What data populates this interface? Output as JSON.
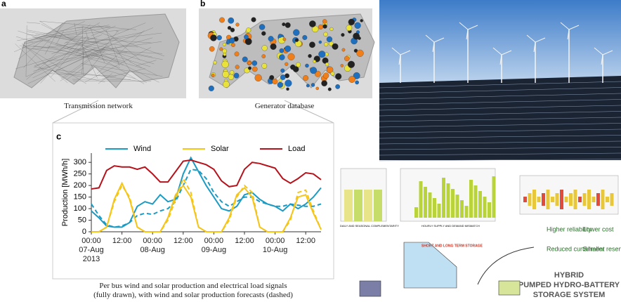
{
  "panels": {
    "a": {
      "letter": "a",
      "caption": "Transmission network"
    },
    "b": {
      "letter": "b",
      "caption": "Generator database"
    },
    "c": {
      "letter": "c",
      "caption_line1": "Per bus wind and solar production and electrical load signals",
      "caption_line2": "(fully drawn), with wind and solar production forecasts (dashed)"
    }
  },
  "chart_data": {
    "type": "line",
    "y_label": "Production [MWh/h]",
    "x": [
      0,
      3,
      6,
      9,
      12,
      15,
      18,
      21,
      24,
      27,
      30,
      33,
      36,
      39,
      42,
      45,
      48,
      51,
      54,
      57,
      60,
      63,
      66,
      69,
      72,
      75,
      78,
      81,
      84,
      87,
      90
    ],
    "xlim": [
      0,
      90
    ],
    "xticks": [
      {
        "value": 0,
        "label": "00:00\n07-Aug\n2013"
      },
      {
        "value": 12,
        "label": "12:00"
      },
      {
        "value": 24,
        "label": "00:00\n08-Aug"
      },
      {
        "value": 36,
        "label": "12:00"
      },
      {
        "value": 48,
        "label": "00:00\n09-Aug"
      },
      {
        "value": 60,
        "label": "12:00"
      },
      {
        "value": 72,
        "label": "00:00\n10-Aug"
      },
      {
        "value": 84,
        "label": "12:00"
      }
    ],
    "ylim": [
      0,
      340
    ],
    "yticks": [
      0,
      50,
      100,
      150,
      200,
      250,
      300
    ],
    "series": [
      {
        "name": "Wind",
        "color": "#1b9bc3",
        "values": [
          90,
          60,
          25,
          20,
          20,
          40,
          110,
          130,
          120,
          160,
          130,
          140,
          250,
          320,
          260,
          200,
          150,
          100,
          90,
          110,
          160,
          170,
          140,
          120,
          110,
          90,
          120,
          100,
          120,
          150,
          190
        ],
        "forecast": [
          120,
          70,
          30,
          20,
          25,
          40,
          70,
          80,
          75,
          90,
          100,
          130,
          200,
          270,
          265,
          230,
          170,
          130,
          110,
          130,
          150,
          150,
          130,
          120,
          110,
          110,
          120,
          115,
          110,
          110,
          120
        ]
      },
      {
        "name": "Solar",
        "color": "#f5c518",
        "values": [
          0,
          0,
          20,
          140,
          210,
          140,
          20,
          0,
          0,
          0,
          60,
          160,
          200,
          150,
          20,
          0,
          0,
          0,
          60,
          160,
          190,
          150,
          20,
          0,
          0,
          0,
          60,
          150,
          160,
          80,
          10
        ],
        "forecast": [
          0,
          0,
          20,
          130,
          200,
          150,
          20,
          0,
          0,
          0,
          50,
          140,
          230,
          170,
          20,
          0,
          0,
          0,
          50,
          150,
          200,
          170,
          20,
          0,
          0,
          0,
          50,
          170,
          180,
          90,
          10
        ]
      },
      {
        "name": "Load",
        "color": "#b5121b",
        "values": [
          185,
          190,
          265,
          285,
          280,
          280,
          270,
          280,
          250,
          215,
          215,
          260,
          305,
          310,
          300,
          290,
          270,
          220,
          195,
          200,
          270,
          300,
          295,
          285,
          275,
          230,
          210,
          230,
          255,
          250,
          225
        ]
      }
    ]
  },
  "diagram": {
    "step1": "DAILY AND SEASONAL COMPLEMENTARITY",
    "step2": "HOURLY SUPPLY AND DEMAND MISMATCH",
    "storage": "SHORT AND LONG TERM STORAGE",
    "benefits": [
      "Higher reliability",
      "Lower cost",
      "Reduced curtailment",
      "Smaller reservoirs"
    ],
    "title": [
      "HYBRID",
      "PUMPED HYDRO-BATTERY",
      "STORAGE SYSTEM"
    ]
  }
}
